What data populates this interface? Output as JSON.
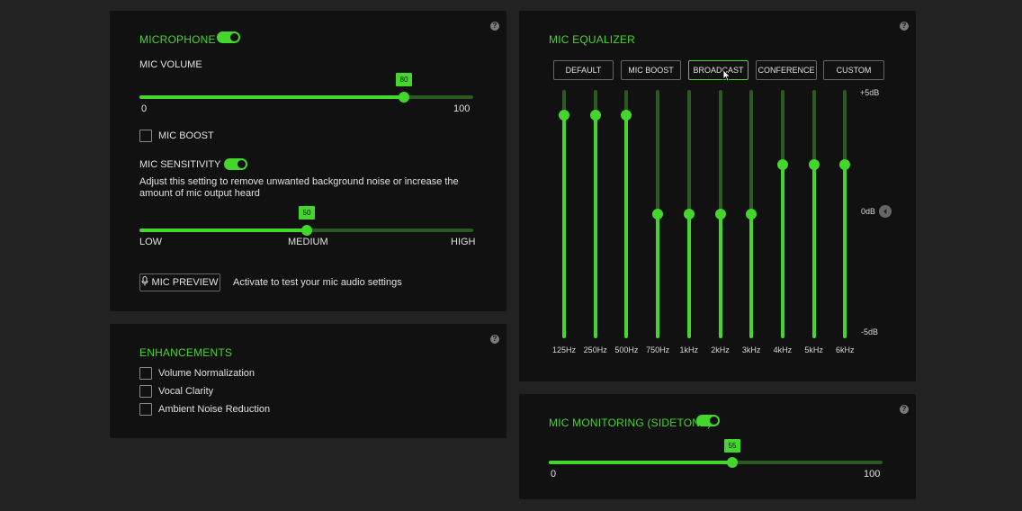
{
  "microphone": {
    "title": "MICROPHONE",
    "enabled": true,
    "volume_label": "MIC VOLUME",
    "volume_value": "80",
    "volume_min": "0",
    "volume_max": "100",
    "boost_label": "MIC BOOST",
    "boost_checked": false,
    "sensitivity_label": "MIC SENSITIVITY",
    "sensitivity_enabled": true,
    "sensitivity_desc": "Adjust this setting to remove unwanted background noise or increase the amount of mic output heard",
    "sensitivity_value": "50",
    "sensitivity_low": "LOW",
    "sensitivity_medium": "MEDIUM",
    "sensitivity_high": "HIGH",
    "preview_label": "MIC PREVIEW",
    "preview_desc": "Activate to test your mic audio settings",
    "help": "?"
  },
  "enhancements": {
    "title": "ENHANCEMENTS",
    "help": "?",
    "items": [
      {
        "label": "Volume Normalization",
        "checked": false
      },
      {
        "label": "Vocal Clarity",
        "checked": false
      },
      {
        "label": "Ambient Noise Reduction",
        "checked": false
      }
    ]
  },
  "equalizer": {
    "title": "MIC EQUALIZER",
    "help": "?",
    "presets": [
      "DEFAULT",
      "MIC BOOST",
      "BROADCAST",
      "CONFERENCE",
      "CUSTOM"
    ],
    "active_preset": "BROADCAST",
    "db_top": "+5dB",
    "db_mid": "0dB",
    "db_bottom": "-5dB",
    "bands": [
      "125Hz",
      "250Hz",
      "500Hz",
      "750Hz",
      "1kHz",
      "2kHz",
      "3kHz",
      "4kHz",
      "5kHz",
      "6kHz"
    ],
    "levels_db": [
      4,
      4,
      4,
      0,
      0,
      0,
      0,
      2,
      2,
      2
    ]
  },
  "monitoring": {
    "title": "MIC MONITORING (SIDETONE)",
    "enabled": true,
    "help": "?",
    "value": "55",
    "min": "0",
    "max": "100"
  }
}
